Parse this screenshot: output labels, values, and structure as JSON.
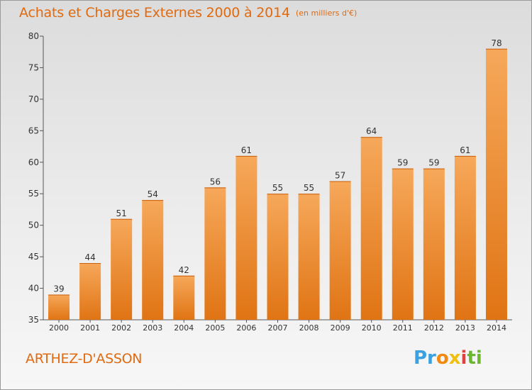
{
  "header": {
    "title": "Achats et Charges Externes 2000 à 2014",
    "unit": "(en milliers d'€)"
  },
  "footer": {
    "commune": "ARTHEZ-D'ASSON",
    "logo_letters": [
      "Pr",
      "o",
      "x",
      "i",
      "ti"
    ]
  },
  "colors": {
    "accent": "#e06a10",
    "bar_top": "#f6a85a",
    "bar_bottom": "#e07414"
  },
  "chart_data": {
    "type": "bar",
    "title": "Achats et Charges Externes 2000 à 2014",
    "subtitle": "(en milliers d'€)",
    "xlabel": "",
    "ylabel": "",
    "categories": [
      "2000",
      "2001",
      "2002",
      "2003",
      "2004",
      "2005",
      "2006",
      "2007",
      "2008",
      "2009",
      "2010",
      "2011",
      "2012",
      "2013",
      "2014"
    ],
    "values": [
      39,
      44,
      51,
      54,
      42,
      56,
      61,
      55,
      55,
      57,
      64,
      59,
      59,
      61,
      78
    ],
    "ylim": [
      35,
      80
    ],
    "yticks": [
      35,
      40,
      45,
      50,
      55,
      60,
      65,
      70,
      75,
      80
    ],
    "grid": false,
    "legend": "none"
  }
}
